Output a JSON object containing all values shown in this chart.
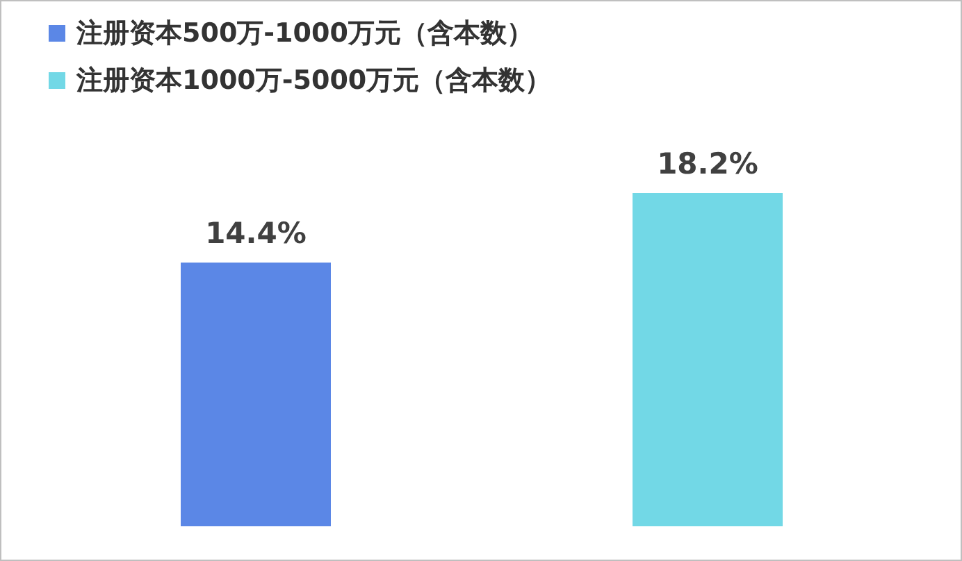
{
  "chart_data": {
    "type": "bar",
    "categories": [
      null,
      null
    ],
    "stacked": true,
    "series": [
      {
        "name": "注册资本500万-1000万元（含本数）",
        "color": "#5b87e6",
        "values": [
          14.4,
          null
        ],
        "value_labels": [
          "14.4%",
          null
        ]
      },
      {
        "name": "注册资本1000万-5000万元（含本数）",
        "color": "#72d8e6",
        "values": [
          null,
          18.2
        ],
        "value_labels": [
          null,
          "18.2%"
        ]
      }
    ],
    "legend": "top left"
  }
}
